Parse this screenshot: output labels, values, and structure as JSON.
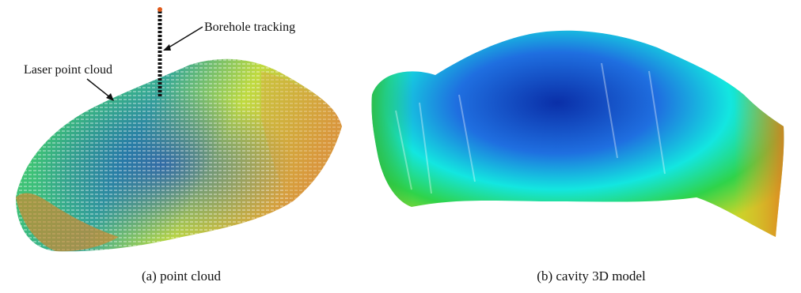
{
  "panel_a": {
    "caption": "(a) point cloud",
    "annotations": {
      "borehole": "Borehole tracking",
      "laser": "Laser point cloud"
    }
  },
  "panel_b": {
    "caption": "(b) cavity 3D model"
  },
  "colors": {
    "deep_blue": "#0a2fa8",
    "blue": "#1f6fe0",
    "cyan": "#13e6e0",
    "green": "#2fd34a",
    "yellow_green": "#b8d62a",
    "orange": "#d5862a",
    "red_orange": "#c8401c"
  },
  "icons": [
    "arrow-icon"
  ]
}
